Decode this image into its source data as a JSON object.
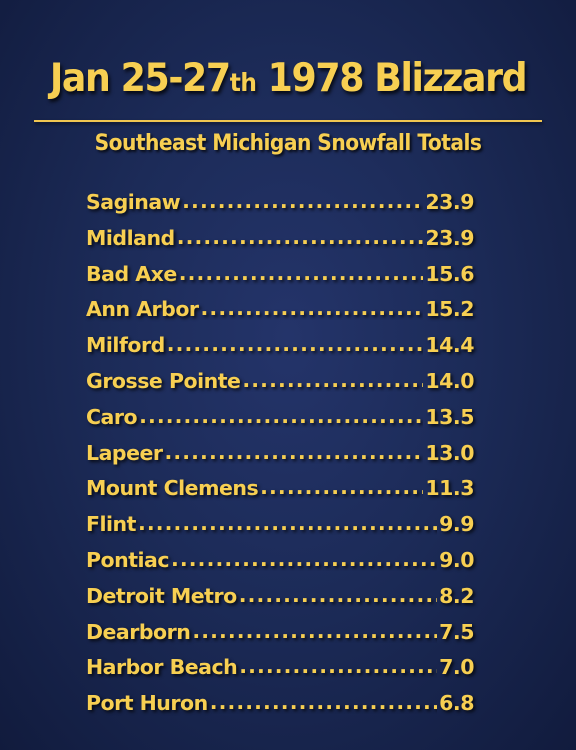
{
  "title": {
    "main_before": "Jan 25-27",
    "suffix": "th",
    "main_after": " 1978 Blizzard"
  },
  "subtitle": "Southeast Michigan Snowfall Totals",
  "colors": {
    "background": "#1b2a55",
    "text": "#f7cf52"
  },
  "totals": [
    {
      "city": "Saginaw",
      "value": "23.9"
    },
    {
      "city": "Midland",
      "value": "23.9"
    },
    {
      "city": "Bad Axe",
      "value": "15.6"
    },
    {
      "city": "Ann Arbor",
      "value": "15.2"
    },
    {
      "city": "Milford",
      "value": "14.4"
    },
    {
      "city": "Grosse Pointe",
      "value": "14.0"
    },
    {
      "city": "Caro",
      "value": "13.5"
    },
    {
      "city": "Lapeer",
      "value": "13.0"
    },
    {
      "city": "Mount Clemens",
      "value": "11.3"
    },
    {
      "city": "Flint",
      "value": "9.9"
    },
    {
      "city": "Pontiac",
      "value": "9.0"
    },
    {
      "city": "Detroit Metro",
      "value": "8.2"
    },
    {
      "city": "Dearborn",
      "value": "7.5"
    },
    {
      "city": "Harbor Beach",
      "value": "7.0"
    },
    {
      "city": "Port Huron",
      "value": "6.8"
    }
  ]
}
